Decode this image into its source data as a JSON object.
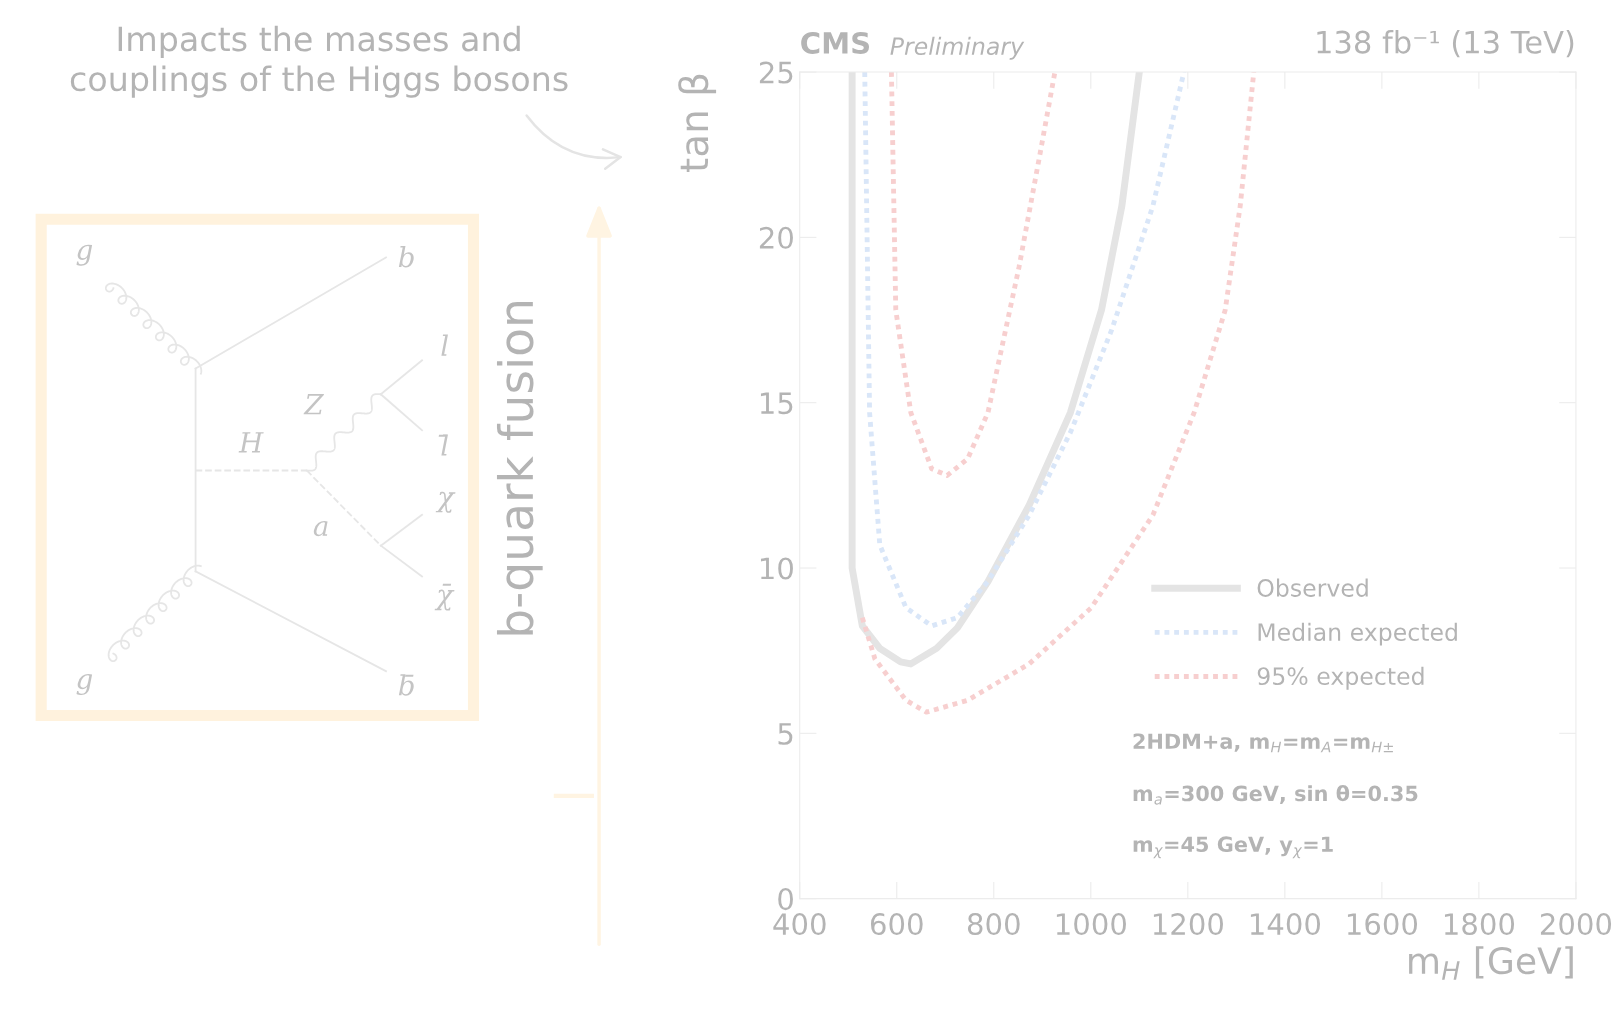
{
  "chart_data": {
    "type": "line",
    "xlabel": "m$_{H}$ [GeV]",
    "ylabel": "tan β",
    "xlim": [
      400,
      2000
    ],
    "xticks": [
      400,
      600,
      800,
      1000,
      1200,
      1400,
      1600,
      1800,
      2000
    ],
    "ylim": [
      0,
      25
    ],
    "yticks": [
      0,
      5,
      10,
      15,
      20,
      25
    ],
    "grid": false,
    "legend": "right",
    "marker": "none",
    "series": [
      {
        "name": "Observed",
        "color": "#e4e4e4",
        "line_style": "solid",
        "x": [
          508,
          508,
          529,
          565,
          608,
          629,
          682,
          725,
          788,
          873,
          958,
          1022,
          1064,
          1100
        ],
        "values": [
          25,
          10,
          8.25,
          7.57,
          7.16,
          7.1,
          7.57,
          8.19,
          9.59,
          11.9,
          14.7,
          17.8,
          20.95,
          25
        ]
      },
      {
        "name": "Median expected",
        "color": "#d9e6f8",
        "line_style": "dotted",
        "x": [
          534,
          544,
          565,
          619,
          672,
          725,
          788,
          873,
          958,
          1043,
          1128,
          1192
        ],
        "values": [
          25,
          14.7,
          10.7,
          8.8,
          8.25,
          8.5,
          9.6,
          11.6,
          14.1,
          17.2,
          20.95,
          25
        ]
      },
      {
        "name": "95% expected",
        "color": "#f7cfcf",
        "line_style": "dotted",
        "x": [
          529,
          555,
          619,
          661,
          746,
          873,
          1001,
          1128,
          1213,
          1277,
          1308,
          1336
        ],
        "values": [
          8.5,
          7.25,
          6.0,
          5.64,
          6.0,
          7.1,
          8.8,
          11.6,
          14.7,
          17.8,
          20.95,
          25
        ]
      },
      {
        "color": "#f7cfcf",
        "line_style": "dotted",
        "x": [
          589,
          598,
          629,
          672,
          704,
          746,
          788,
          852,
          895,
          926
        ],
        "values": [
          25,
          17.8,
          14.7,
          13,
          12.8,
          13.3,
          14.7,
          19.1,
          22.5,
          25
        ]
      }
    ],
    "annotations": [
      "CMS",
      "Preliminary",
      "138 fb⁻¹ (13 TeV)",
      "2HDM+a, m$_{H}$=m$_{A}$=m$_{H±}$",
      "m$_{a}$=300 GeV, sin θ=0.35",
      "m$_{χ}$=45 GeV, y$_{χ}$=1",
      "Impacts the masses and\ncouplings of the Higgs bosons",
      "b-quark fusion",
      "g",
      "b",
      "l",
      "Z",
      "l̄",
      "H",
      "χ",
      "a",
      "χ̄",
      "g",
      "b̄"
    ]
  }
}
